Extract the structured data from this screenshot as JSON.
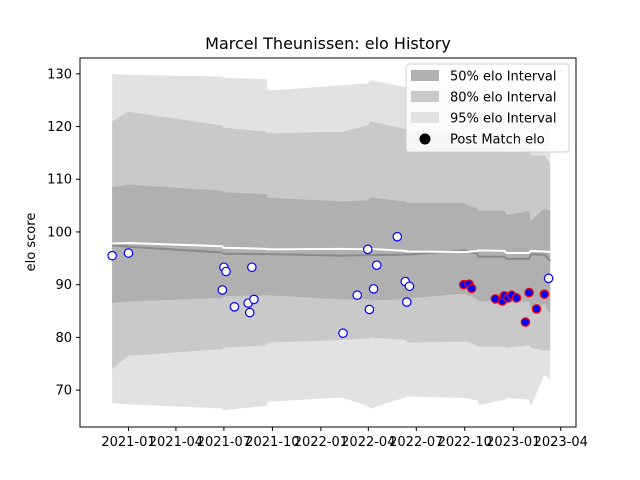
{
  "chart_data": {
    "type": "area",
    "title": "Marcel Theunissen: elo History",
    "xlabel": "",
    "ylabel": "elo score",
    "xlim": [
      "2020-10-01",
      "2023-04-30"
    ],
    "ylim": [
      63,
      133
    ],
    "x_ticks": [
      {
        "date": "2021-01-01",
        "label": "2021-01"
      },
      {
        "date": "2021-04-01",
        "label": "2021-04"
      },
      {
        "date": "2021-07-01",
        "label": "2021-07"
      },
      {
        "date": "2021-10-01",
        "label": "2021-10"
      },
      {
        "date": "2022-01-01",
        "label": "2022-01"
      },
      {
        "date": "2022-04-01",
        "label": "2022-04"
      },
      {
        "date": "2022-07-01",
        "label": "2022-07"
      },
      {
        "date": "2022-10-01",
        "label": "2022-10"
      },
      {
        "date": "2023-01-01",
        "label": "2023-01"
      },
      {
        "date": "2023-04-01",
        "label": "2023-04"
      }
    ],
    "y_ticks": [
      70,
      80,
      90,
      100,
      110,
      120,
      130
    ],
    "grid": false,
    "legend_position": "top-right",
    "legend": [
      {
        "label": "50% elo Interval",
        "kind": "area",
        "color": "#b0b0b0"
      },
      {
        "label": "80% elo Interval",
        "kind": "area",
        "color": "#c9c9c9"
      },
      {
        "label": "95% elo Interval",
        "kind": "area",
        "color": "#e2e2e2"
      },
      {
        "label": "Post Match elo",
        "kind": "marker",
        "color": "#000000"
      }
    ],
    "colors": {
      "band50": "#b0b0b0",
      "band80": "#c9c9c9",
      "band95": "#e2e2e2",
      "mean_line": "#8a8a8a",
      "median_line": "#ffffff",
      "marker_edge_primary": "#0000ff",
      "marker_edge_secondary": "#ff0000",
      "marker_fill_primary": "#ffffff",
      "marker_fill_secondary": "#0000ff"
    },
    "bands": {
      "x": [
        "2020-12-01",
        "2021-01-01",
        "2021-06-28",
        "2021-06-30",
        "2021-09-20",
        "2021-09-22",
        "2022-02-10",
        "2022-03-31",
        "2022-04-05",
        "2022-06-10",
        "2022-06-15",
        "2022-09-30",
        "2022-10-03",
        "2022-10-25",
        "2022-10-28",
        "2022-12-15",
        "2022-12-20",
        "2023-01-31",
        "2023-02-03",
        "2023-03-01",
        "2023-03-12"
      ],
      "p95_upper": [
        130,
        129.8,
        129.5,
        129.2,
        129,
        126.8,
        127.8,
        128.2,
        128.8,
        127.5,
        127.2,
        127.6,
        127.8,
        126.4,
        125.4,
        125.6,
        123.8,
        124.8,
        121.5,
        122.2,
        120
      ],
      "p80_upper": [
        121,
        122.8,
        120.2,
        119.8,
        119,
        118.7,
        119,
        120.2,
        121,
        119.5,
        119.2,
        119,
        118.8,
        117,
        116.2,
        117.5,
        116,
        116.7,
        114.5,
        114.5,
        113
      ],
      "p50_upper": [
        108.5,
        109,
        107.8,
        107.5,
        107.2,
        106.5,
        105.8,
        106,
        106.5,
        105.8,
        105.5,
        105.5,
        105.2,
        104.5,
        104,
        104,
        103.2,
        104,
        102,
        104.5,
        104
      ],
      "p50_lower": [
        86.5,
        86.8,
        87.5,
        87.8,
        88,
        88,
        87.2,
        87.2,
        87,
        87.2,
        87.4,
        88.3,
        88.2,
        87.2,
        86.8,
        87,
        86.5,
        86.8,
        85.5,
        86.3,
        84.5
      ],
      "p80_lower": [
        74,
        76.5,
        77.8,
        78,
        78.5,
        79,
        79.5,
        79.8,
        80,
        79.5,
        79,
        79.2,
        79.3,
        78.4,
        78.3,
        78.2,
        78,
        78.5,
        78,
        77.5,
        77.5
      ],
      "p95_lower": [
        67.5,
        67.3,
        66.5,
        66.2,
        67,
        67.8,
        68.6,
        67,
        66.5,
        68.6,
        68.8,
        68.5,
        68.5,
        68,
        67.2,
        68.1,
        68.5,
        68.2,
        66.9,
        72.8,
        72
      ]
    },
    "mean_line": {
      "x": [
        "2020-12-01",
        "2021-01-01",
        "2021-06-28",
        "2021-06-30",
        "2021-09-20",
        "2021-09-22",
        "2022-02-10",
        "2022-03-31",
        "2022-04-05",
        "2022-06-10",
        "2022-06-15",
        "2022-09-30",
        "2022-10-03",
        "2022-10-25",
        "2022-10-28",
        "2022-12-15",
        "2022-12-20",
        "2023-01-31",
        "2023-02-03",
        "2023-03-01",
        "2023-03-12"
      ],
      "values": [
        97.5,
        97.2,
        96.1,
        95.9,
        95.8,
        95.8,
        95.5,
        95.6,
        95.6,
        95.7,
        95.7,
        96.5,
        96.5,
        95.8,
        95.3,
        95.3,
        94.9,
        94.9,
        95.7,
        95.7,
        94.5
      ]
    },
    "median_line": {
      "x": [
        "2020-12-01",
        "2021-01-01",
        "2021-06-28",
        "2021-06-30",
        "2021-09-20",
        "2021-09-22",
        "2022-02-10",
        "2022-03-31",
        "2022-04-05",
        "2022-06-10",
        "2022-06-15",
        "2022-09-30",
        "2022-10-03",
        "2022-10-25",
        "2022-10-28",
        "2022-12-15",
        "2022-12-20",
        "2023-01-31",
        "2023-02-03",
        "2023-03-01",
        "2023-03-12"
      ],
      "values": [
        97.8,
        97.9,
        97.3,
        97,
        96.8,
        96.7,
        96.8,
        96.7,
        96.8,
        96.4,
        96.3,
        96.2,
        96.2,
        96.4,
        96.5,
        96.4,
        96,
        96,
        96.4,
        96.3,
        96.2
      ]
    },
    "series": [
      {
        "name": "Post Match elo",
        "points": [
          {
            "x": "2020-12-01",
            "y": 95.5,
            "group": "primary"
          },
          {
            "x": "2021-01-01",
            "y": 96.0,
            "group": "primary"
          },
          {
            "x": "2021-06-28",
            "y": 89.0,
            "group": "primary"
          },
          {
            "x": "2021-07-01",
            "y": 93.3,
            "group": "primary"
          },
          {
            "x": "2021-07-05",
            "y": 92.5,
            "group": "primary"
          },
          {
            "x": "2021-07-21",
            "y": 85.8,
            "group": "primary"
          },
          {
            "x": "2021-08-16",
            "y": 86.5,
            "group": "primary"
          },
          {
            "x": "2021-08-19",
            "y": 84.7,
            "group": "primary"
          },
          {
            "x": "2021-08-23",
            "y": 93.3,
            "group": "primary"
          },
          {
            "x": "2021-08-27",
            "y": 87.2,
            "group": "primary"
          },
          {
            "x": "2022-02-12",
            "y": 80.8,
            "group": "primary"
          },
          {
            "x": "2022-03-11",
            "y": 88.0,
            "group": "primary"
          },
          {
            "x": "2022-03-31",
            "y": 96.7,
            "group": "primary"
          },
          {
            "x": "2022-04-03",
            "y": 85.3,
            "group": "primary"
          },
          {
            "x": "2022-04-11",
            "y": 89.2,
            "group": "primary"
          },
          {
            "x": "2022-04-17",
            "y": 93.7,
            "group": "primary"
          },
          {
            "x": "2022-05-26",
            "y": 99.1,
            "group": "primary"
          },
          {
            "x": "2022-06-10",
            "y": 90.6,
            "group": "primary"
          },
          {
            "x": "2022-06-13",
            "y": 86.7,
            "group": "primary"
          },
          {
            "x": "2022-06-18",
            "y": 89.7,
            "group": "primary"
          },
          {
            "x": "2022-09-29",
            "y": 90.0,
            "group": "secondary"
          },
          {
            "x": "2022-10-09",
            "y": 90.1,
            "group": "secondary"
          },
          {
            "x": "2022-10-14",
            "y": 89.3,
            "group": "secondary"
          },
          {
            "x": "2022-11-28",
            "y": 87.3,
            "group": "secondary"
          },
          {
            "x": "2022-12-11",
            "y": 86.9,
            "group": "secondary"
          },
          {
            "x": "2022-12-15",
            "y": 87.9,
            "group": "secondary"
          },
          {
            "x": "2022-12-22",
            "y": 87.5,
            "group": "secondary"
          },
          {
            "x": "2022-12-29",
            "y": 88.0,
            "group": "secondary"
          },
          {
            "x": "2023-01-07",
            "y": 87.5,
            "group": "secondary"
          },
          {
            "x": "2023-01-24",
            "y": 82.9,
            "group": "secondary"
          },
          {
            "x": "2023-01-31",
            "y": 88.5,
            "group": "secondary"
          },
          {
            "x": "2023-02-14",
            "y": 85.4,
            "group": "secondary"
          },
          {
            "x": "2023-03-01",
            "y": 88.2,
            "group": "secondary"
          },
          {
            "x": "2023-03-09",
            "y": 91.2,
            "group": "primary"
          }
        ]
      }
    ]
  }
}
